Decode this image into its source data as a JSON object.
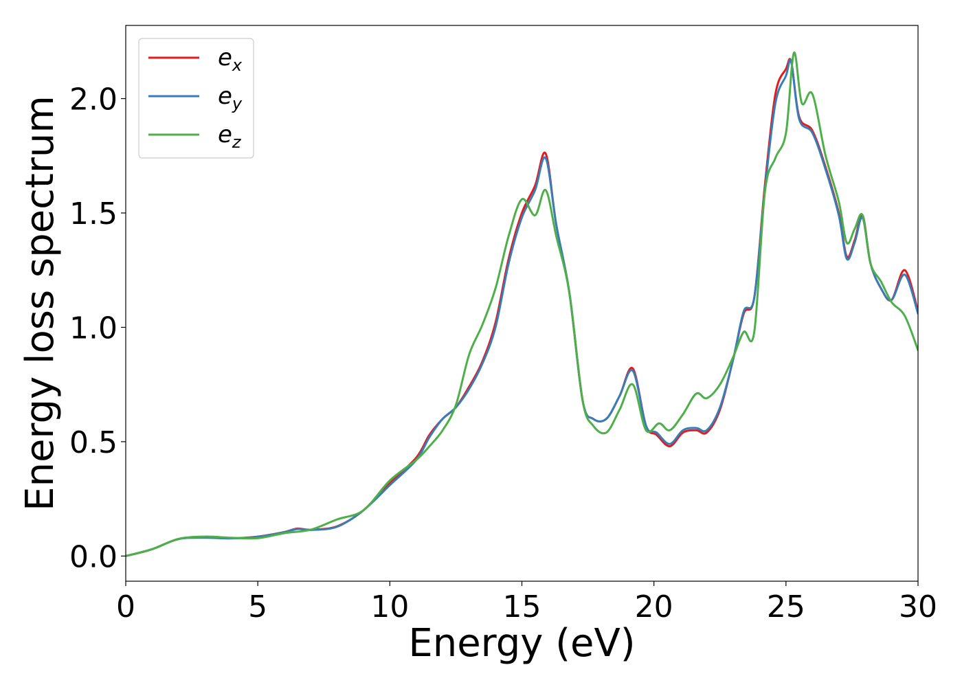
{
  "chart_data": {
    "type": "line",
    "title": "",
    "xlabel": "Energy (eV)",
    "ylabel": "Energy loss spectrum",
    "xlim": [
      0,
      30
    ],
    "ylim": [
      -0.11,
      2.32
    ],
    "xticks": [
      0,
      5,
      10,
      15,
      20,
      25,
      30
    ],
    "xtick_labels": [
      "0",
      "5",
      "10",
      "15",
      "20",
      "25",
      "30"
    ],
    "yticks": [
      0.0,
      0.5,
      1.0,
      1.5,
      2.0
    ],
    "ytick_labels": [
      "0.0",
      "0.5",
      "1.0",
      "1.5",
      "2.0"
    ],
    "grid": false,
    "legend_position": "top-left",
    "series": [
      {
        "name": "e_x",
        "legend_base": "e",
        "legend_sub": "x",
        "color": "#e41a1c",
        "x": [
          0,
          1,
          2,
          3,
          4,
          5,
          6,
          6.5,
          7,
          8,
          9,
          10,
          11,
          11.5,
          12,
          12.5,
          13,
          13.5,
          14,
          14.5,
          15,
          15.5,
          15.9,
          16.3,
          16.8,
          17.3,
          17.7,
          18.2,
          18.7,
          19.2,
          19.7,
          20.1,
          20.6,
          21.1,
          21.6,
          22,
          22.5,
          23,
          23.4,
          23.8,
          24.2,
          24.6,
          25,
          25.2,
          25.5,
          26,
          26.5,
          27,
          27.3,
          27.6,
          27.9,
          28.2,
          28.6,
          29,
          29.5,
          30
        ],
        "y": [
          0.0,
          0.03,
          0.075,
          0.082,
          0.078,
          0.085,
          0.105,
          0.12,
          0.115,
          0.13,
          0.2,
          0.32,
          0.43,
          0.53,
          0.6,
          0.65,
          0.74,
          0.85,
          1.02,
          1.3,
          1.5,
          1.62,
          1.76,
          1.45,
          1.15,
          0.68,
          0.6,
          0.6,
          0.7,
          0.82,
          0.57,
          0.53,
          0.48,
          0.54,
          0.55,
          0.54,
          0.64,
          0.86,
          1.06,
          1.13,
          1.62,
          2.02,
          2.13,
          2.16,
          1.92,
          1.86,
          1.7,
          1.5,
          1.31,
          1.38,
          1.49,
          1.28,
          1.17,
          1.12,
          1.25,
          1.07
        ]
      },
      {
        "name": "e_y",
        "legend_base": "e",
        "legend_sub": "y",
        "color": "#377eb8",
        "x": [
          0,
          1,
          2,
          3,
          4,
          5,
          6,
          6.5,
          7,
          8,
          9,
          10,
          11,
          11.5,
          12,
          12.5,
          13,
          13.5,
          14,
          14.5,
          15,
          15.5,
          15.9,
          16.3,
          16.8,
          17.3,
          17.7,
          18.2,
          18.7,
          19.2,
          19.7,
          20.1,
          20.6,
          21.1,
          21.6,
          22,
          22.5,
          23,
          23.4,
          23.8,
          24.2,
          24.6,
          25,
          25.2,
          25.5,
          26,
          26.5,
          27,
          27.3,
          27.6,
          27.9,
          28.2,
          28.6,
          29,
          29.5,
          30
        ],
        "y": [
          0.0,
          0.03,
          0.074,
          0.08,
          0.077,
          0.084,
          0.104,
          0.118,
          0.114,
          0.128,
          0.2,
          0.31,
          0.42,
          0.52,
          0.6,
          0.65,
          0.73,
          0.84,
          1.0,
          1.28,
          1.48,
          1.6,
          1.74,
          1.45,
          1.15,
          0.68,
          0.6,
          0.6,
          0.7,
          0.81,
          0.57,
          0.54,
          0.49,
          0.55,
          0.56,
          0.55,
          0.65,
          0.86,
          1.07,
          1.13,
          1.6,
          1.98,
          2.1,
          2.16,
          1.91,
          1.85,
          1.69,
          1.49,
          1.3,
          1.37,
          1.48,
          1.28,
          1.17,
          1.12,
          1.23,
          1.06
        ]
      },
      {
        "name": "e_z",
        "legend_base": "e",
        "legend_sub": "z",
        "color": "#4daf4a",
        "x": [
          0,
          1,
          2,
          3,
          4,
          5,
          6,
          7,
          8,
          9,
          10,
          11,
          11.5,
          12,
          12.5,
          13,
          13.5,
          14,
          14.5,
          15,
          15.5,
          15.9,
          16.3,
          16.8,
          17.3,
          17.7,
          18.2,
          18.7,
          19.2,
          19.7,
          20.2,
          20.6,
          21.1,
          21.6,
          22,
          22.5,
          23,
          23.4,
          23.8,
          24.2,
          24.6,
          25,
          25.3,
          25.6,
          26,
          26.5,
          27,
          27.3,
          27.6,
          27.9,
          28.2,
          28.6,
          29,
          29.5,
          30
        ],
        "y": [
          0.0,
          0.03,
          0.075,
          0.085,
          0.08,
          0.078,
          0.1,
          0.115,
          0.16,
          0.2,
          0.33,
          0.42,
          0.48,
          0.55,
          0.66,
          0.88,
          1.01,
          1.17,
          1.4,
          1.56,
          1.49,
          1.6,
          1.4,
          1.15,
          0.68,
          0.57,
          0.54,
          0.64,
          0.75,
          0.55,
          0.58,
          0.55,
          0.62,
          0.71,
          0.69,
          0.75,
          0.87,
          0.98,
          0.98,
          1.59,
          1.74,
          1.85,
          2.2,
          1.98,
          2.02,
          1.75,
          1.55,
          1.37,
          1.43,
          1.49,
          1.28,
          1.2,
          1.11,
          1.05,
          0.9
        ]
      }
    ]
  }
}
